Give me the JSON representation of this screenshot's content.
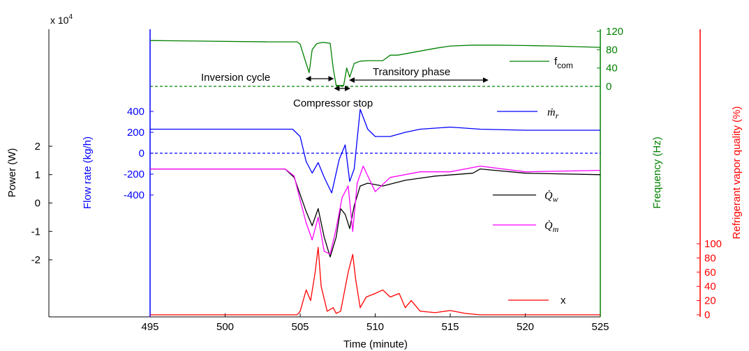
{
  "chart_data": {
    "type": "line",
    "x": {
      "label": "Time (minute)",
      "range": [
        493,
        525
      ],
      "ticks": [
        495,
        500,
        505,
        510,
        515,
        520,
        525
      ]
    },
    "axes": {
      "power": {
        "label": "Power (W)",
        "multiplier": "x 10",
        "multiplier_exp": "4",
        "ticks": [
          {
            "v": 2,
            "t": "2"
          },
          {
            "v": 1,
            "t": "1"
          },
          {
            "v": 0,
            "t": "0"
          },
          {
            "v": -1,
            "t": "-1"
          },
          {
            "v": -2,
            "t": "-2"
          }
        ],
        "color": "#000000"
      },
      "flow": {
        "label": "Flow rate (kg/h)",
        "ticks": [
          {
            "v": 400,
            "t": "400"
          },
          {
            "v": 200,
            "t": "200"
          },
          {
            "v": 0,
            "t": "0"
          },
          {
            "v": -200,
            "t": "-200"
          },
          {
            "v": -400,
            "t": "-400"
          }
        ],
        "color": "#0000ff"
      },
      "freq": {
        "label": "Frequency (Hz)",
        "ticks": [
          {
            "v": 120,
            "t": "120"
          },
          {
            "v": 80,
            "t": "80"
          },
          {
            "v": 40,
            "t": "40"
          },
          {
            "v": 0,
            "t": "0"
          }
        ],
        "color": "#008000"
      },
      "quality": {
        "label": "Refrigerant vapor quality (%)",
        "ticks": [
          {
            "v": 100,
            "t": "100"
          },
          {
            "v": 80,
            "t": "80"
          },
          {
            "v": 60,
            "t": "60"
          },
          {
            "v": 40,
            "t": "40"
          },
          {
            "v": 20,
            "t": "20"
          },
          {
            "v": 0,
            "t": "0"
          }
        ],
        "color": "#ff0000"
      }
    },
    "series": [
      {
        "name": "f",
        "name_sub": "com",
        "axis": "freq",
        "color": "#008000",
        "x": [
          495,
          503,
          504.8,
          505,
          505.3,
          505.6,
          505.8,
          506.1,
          506.5,
          507,
          507.2,
          507.4,
          507.6,
          507.9,
          508.1,
          508.3,
          508.6,
          509,
          509.5,
          510.5,
          511,
          511.5,
          512.5,
          513.5,
          514.2,
          515,
          516.5,
          518,
          520,
          522,
          525
        ],
        "y": [
          100,
          97,
          97,
          92,
          60,
          30,
          80,
          93,
          96,
          94,
          40,
          2,
          2,
          2,
          40,
          20,
          50,
          55,
          56,
          56,
          68,
          68,
          74,
          80,
          84,
          88,
          90,
          90,
          89,
          88,
          85
        ]
      },
      {
        "name": "",
        "axis": "freq",
        "color": "#008000",
        "dashed": true,
        "x": [
          495,
          525
        ],
        "y": [
          0,
          0
        ]
      },
      {
        "name": "ṁ",
        "name_sub": "r",
        "axis": "flow",
        "color": "#0000ff",
        "x": [
          495,
          504.5,
          505,
          505.4,
          505.8,
          506.2,
          506.6,
          507.1,
          507.6,
          508,
          508.3,
          508.6,
          509,
          509.5,
          510,
          511,
          512,
          513,
          514,
          515,
          517,
          520,
          525
        ],
        "y": [
          230,
          230,
          160,
          -80,
          -190,
          -90,
          -230,
          -380,
          -60,
          80,
          -270,
          -150,
          420,
          230,
          160,
          160,
          200,
          230,
          240,
          250,
          230,
          220,
          220
        ]
      },
      {
        "name": "",
        "axis": "flow",
        "color": "#0000ff",
        "dashed": true,
        "x": [
          495,
          525
        ],
        "y": [
          0,
          0
        ]
      },
      {
        "name": "Q̇",
        "name_sub": "w",
        "axis": "power",
        "color": "#000000",
        "x": [
          495,
          504,
          504.6,
          505,
          505.4,
          505.8,
          506.2,
          506.6,
          507,
          507.4,
          507.7,
          508,
          508.3,
          508.6,
          509,
          509.5,
          510.5,
          512,
          514,
          516.5,
          517,
          520,
          525
        ],
        "y": [
          1.2,
          1.2,
          0.9,
          0.3,
          -0.3,
          -0.8,
          -0.2,
          -1.2,
          -1.9,
          -1.2,
          -0.2,
          -0.4,
          -0.9,
          -0.1,
          0.6,
          0.7,
          0.6,
          0.8,
          0.95,
          1.05,
          1.2,
          1.05,
          1.0
        ]
      },
      {
        "name": "Q̇",
        "name_sub": "m",
        "axis": "power",
        "color": "#ff00ff",
        "x": [
          495,
          504,
          504.6,
          505,
          505.4,
          505.8,
          506.2,
          506.6,
          507,
          507.4,
          507.8,
          508.2,
          508.5,
          508.8,
          509.2,
          510,
          511,
          513,
          515,
          517,
          520,
          525
        ],
        "y": [
          1.2,
          1.2,
          0.95,
          0.1,
          -0.7,
          -1.3,
          -0.5,
          -1.7,
          -1.8,
          -0.9,
          0.2,
          0.6,
          -1.0,
          0.7,
          1.3,
          0.4,
          0.9,
          1.1,
          1.1,
          1.3,
          1.1,
          1.15
        ]
      },
      {
        "name": "x",
        "axis": "quality",
        "color": "#ff0000",
        "x": [
          495,
          504.8,
          505,
          505.4,
          505.7,
          506,
          506.2,
          506.4,
          506.8,
          507.2,
          507.4,
          507.7,
          508.2,
          508.5,
          508.7,
          509,
          509.4,
          510,
          510.5,
          511,
          511.6,
          512,
          512.4,
          513,
          514,
          515,
          516,
          517,
          525
        ],
        "y": [
          0,
          0,
          5,
          35,
          20,
          60,
          95,
          40,
          5,
          10,
          2,
          5,
          60,
          85,
          50,
          10,
          25,
          30,
          35,
          25,
          30,
          10,
          20,
          5,
          3,
          6,
          2,
          0,
          0
        ]
      }
    ],
    "annotations": [
      {
        "text": "Inversion cycle",
        "arrow_x": [
          505.4,
          507.2
        ]
      },
      {
        "text": "Compressor stop",
        "arrow_x": [
          507.3,
          508.3
        ]
      },
      {
        "text": "Transitory phase",
        "arrow_x": [
          508.3,
          517.5
        ]
      }
    ]
  }
}
